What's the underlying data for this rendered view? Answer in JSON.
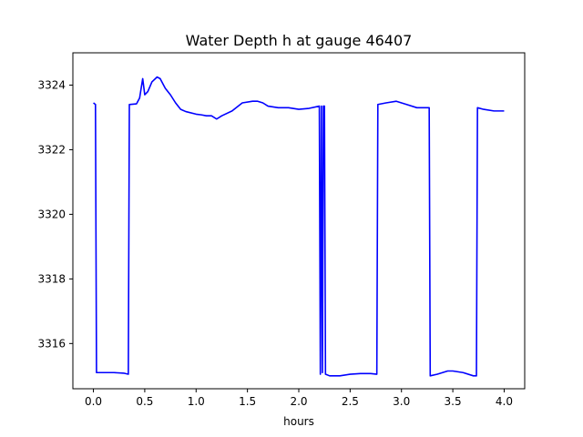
{
  "chart_data": {
    "type": "line",
    "title": "Water Depth h at gauge 46407",
    "xlabel": "hours",
    "ylabel": "",
    "xlim": [
      -0.2,
      4.2
    ],
    "ylim": [
      3314.6,
      3325.0
    ],
    "xticks": [
      0.0,
      0.5,
      1.0,
      1.5,
      2.0,
      2.5,
      3.0,
      3.5,
      4.0
    ],
    "xtick_labels": [
      "0.0",
      "0.5",
      "1.0",
      "1.5",
      "2.0",
      "2.5",
      "3.0",
      "3.5",
      "4.0"
    ],
    "yticks": [
      3316,
      3318,
      3320,
      3322,
      3324
    ],
    "ytick_labels": [
      "3316",
      "3318",
      "3320",
      "3322",
      "3324"
    ],
    "grid": false,
    "series": [
      {
        "color": "#0000ff",
        "x": [
          0.0,
          0.02,
          0.03,
          0.1,
          0.2,
          0.3,
          0.34,
          0.35,
          0.42,
          0.45,
          0.48,
          0.5,
          0.53,
          0.57,
          0.62,
          0.65,
          0.7,
          0.75,
          0.8,
          0.85,
          0.9,
          1.0,
          1.05,
          1.1,
          1.15,
          1.2,
          1.25,
          1.35,
          1.45,
          1.55,
          1.6,
          1.65,
          1.7,
          1.8,
          1.9,
          2.0,
          2.1,
          2.2,
          2.21,
          2.22,
          2.23,
          2.24,
          2.25,
          2.26,
          2.3,
          2.4,
          2.5,
          2.6,
          2.7,
          2.76,
          2.77,
          2.85,
          2.95,
          3.05,
          3.15,
          3.25,
          3.27,
          3.28,
          3.35,
          3.45,
          3.5,
          3.6,
          3.7,
          3.73,
          3.74,
          3.8,
          3.9,
          4.0
        ],
        "y": [
          3323.45,
          3323.4,
          3315.1,
          3315.1,
          3315.1,
          3315.08,
          3315.05,
          3323.4,
          3323.42,
          3323.6,
          3324.2,
          3323.7,
          3323.8,
          3324.1,
          3324.25,
          3324.2,
          3323.9,
          3323.7,
          3323.45,
          3323.25,
          3323.18,
          3323.1,
          3323.08,
          3323.05,
          3323.05,
          3322.95,
          3323.05,
          3323.2,
          3323.45,
          3323.5,
          3323.5,
          3323.45,
          3323.35,
          3323.3,
          3323.3,
          3323.25,
          3323.28,
          3323.35,
          3315.05,
          3323.35,
          3315.1,
          3323.35,
          3323.35,
          3315.05,
          3315.0,
          3315.0,
          3315.05,
          3315.07,
          3315.07,
          3315.05,
          3323.4,
          3323.45,
          3323.5,
          3323.4,
          3323.3,
          3323.3,
          3323.3,
          3315.0,
          3315.05,
          3315.15,
          3315.15,
          3315.1,
          3315.0,
          3315.0,
          3323.3,
          3323.25,
          3323.2,
          3323.2
        ]
      }
    ]
  }
}
